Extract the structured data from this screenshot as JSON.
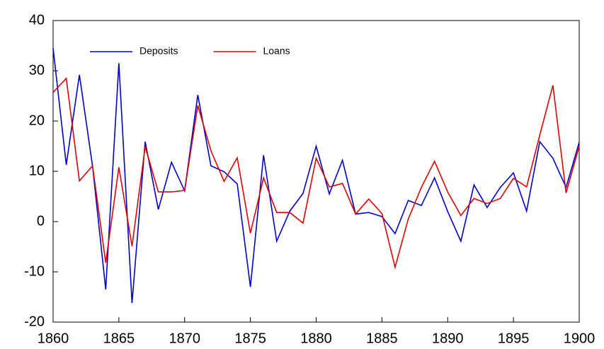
{
  "chart_data": {
    "type": "line",
    "x": [
      1860,
      1861,
      1862,
      1863,
      1864,
      1865,
      1866,
      1867,
      1868,
      1869,
      1870,
      1871,
      1872,
      1873,
      1874,
      1875,
      1876,
      1877,
      1878,
      1879,
      1880,
      1881,
      1882,
      1883,
      1884,
      1885,
      1886,
      1887,
      1888,
      1889,
      1890,
      1891,
      1892,
      1893,
      1894,
      1895,
      1896,
      1897,
      1898,
      1899,
      1900
    ],
    "series": [
      {
        "name": "Deposits",
        "color": "#0000cc",
        "values": [
          34.5,
          11.3,
          29.2,
          11,
          -13.5,
          31.5,
          -16.2,
          15.9,
          2.4,
          11.8,
          6.1,
          25.2,
          11.1,
          9.9,
          7.5,
          -13,
          13.2,
          -3.9,
          2.1,
          5.6,
          15,
          5.5,
          12.2,
          1.5,
          1.8,
          1,
          -2.4,
          4.2,
          3.2,
          8.7,
          2,
          -3.9,
          7.3,
          2.8,
          6.8,
          9.7,
          2.1,
          15.9,
          12.6,
          6.8,
          15.8
        ]
      },
      {
        "name": "Loans",
        "color": "#e00000",
        "values": [
          25.7,
          28.5,
          8.1,
          11.1,
          -8.2,
          10.8,
          -4.9,
          14.9,
          5.9,
          5.9,
          6.2,
          23.1,
          14.1,
          8,
          12.7,
          -2.3,
          8.7,
          1.8,
          1.8,
          -0.3,
          12.6,
          6.9,
          7.6,
          1.5,
          4.5,
          1.6,
          -9.1,
          0.5,
          6.8,
          12,
          5.9,
          1.2,
          4.6,
          3.6,
          4.6,
          8.6,
          6.9,
          17.2,
          27.1,
          5.7,
          15
        ]
      }
    ],
    "xlim": [
      1860,
      1900
    ],
    "xticks": [
      1860,
      1865,
      1870,
      1875,
      1880,
      1885,
      1890,
      1895,
      1900
    ],
    "ylim": [
      -20,
      40
    ],
    "yticks": [
      -20,
      -10,
      0,
      10,
      20,
      30,
      40
    ],
    "legend": "upper left"
  }
}
